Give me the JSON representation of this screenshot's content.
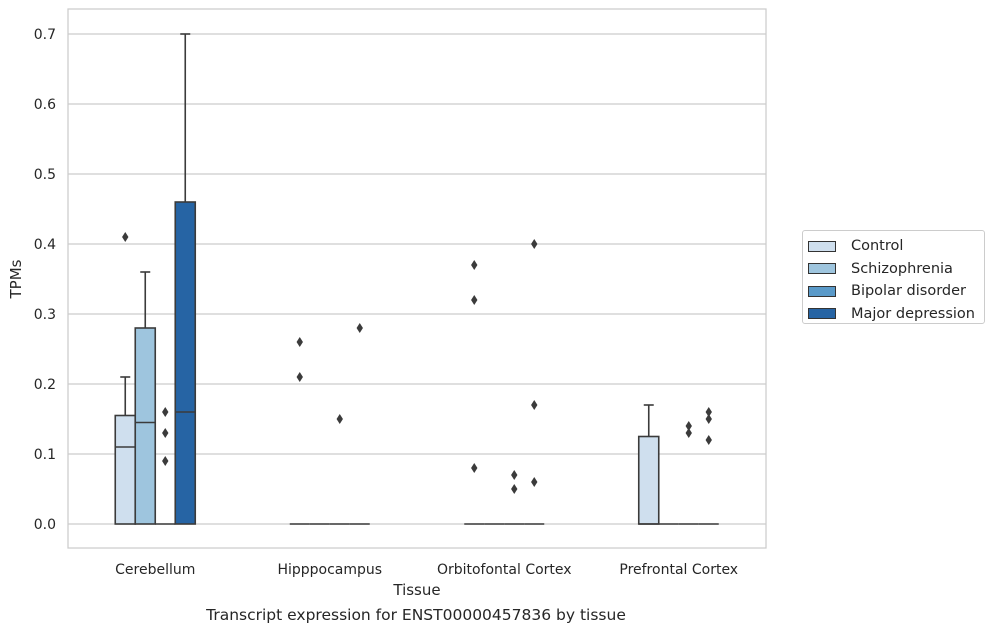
{
  "chart_data": {
    "type": "box",
    "xlabel": "Tissue",
    "ylabel": "TPMs",
    "ylim": [
      -0.035,
      0.735
    ],
    "yticks": [
      "0.0",
      "0.1",
      "0.2",
      "0.3",
      "0.4",
      "0.5",
      "0.6",
      "0.7"
    ],
    "grid": true,
    "legend_position": "right",
    "categories": [
      "Cerebellum",
      "Hipppocampus",
      "Orbitofontal Cortex",
      "Prefrontal Cortex"
    ],
    "series": [
      {
        "name": "Control",
        "color": "#cfdfee"
      },
      {
        "name": "Schizophrenia",
        "color": "#9ec5de"
      },
      {
        "name": "Bipolar disorder",
        "color": "#5a9ac9"
      },
      {
        "name": "Major depression",
        "color": "#2664a4"
      }
    ],
    "boxes": [
      [
        {
          "q1": 0.0,
          "median": 0.11,
          "q3": 0.155,
          "whisker_low": 0.0,
          "whisker_high": 0.21,
          "outliers": [
            0.41
          ]
        },
        {
          "q1": 0.0,
          "median": 0.145,
          "q3": 0.28,
          "whisker_low": 0.0,
          "whisker_high": 0.36,
          "outliers": []
        },
        {
          "q1": 0.0,
          "median": 0.0,
          "q3": 0.0,
          "whisker_low": 0.0,
          "whisker_high": 0.0,
          "outliers": [
            0.16,
            0.13,
            0.09
          ]
        },
        {
          "q1": 0.0,
          "median": 0.16,
          "q3": 0.46,
          "whisker_low": 0.0,
          "whisker_high": 0.7,
          "outliers": []
        }
      ],
      [
        {
          "q1": 0.0,
          "median": 0.0,
          "q3": 0.0,
          "whisker_low": 0.0,
          "whisker_high": 0.0,
          "outliers": [
            0.26,
            0.21
          ]
        },
        {
          "q1": 0.0,
          "median": 0.0,
          "q3": 0.0,
          "whisker_low": 0.0,
          "whisker_high": 0.0,
          "outliers": []
        },
        {
          "q1": 0.0,
          "median": 0.0,
          "q3": 0.0,
          "whisker_low": 0.0,
          "whisker_high": 0.0,
          "outliers": [
            0.15
          ]
        },
        {
          "q1": 0.0,
          "median": 0.0,
          "q3": 0.0,
          "whisker_low": 0.0,
          "whisker_high": 0.0,
          "outliers": [
            0.28
          ]
        }
      ],
      [
        {
          "q1": 0.0,
          "median": 0.0,
          "q3": 0.0,
          "whisker_low": 0.0,
          "whisker_high": 0.0,
          "outliers": [
            0.37,
            0.32,
            0.08
          ]
        },
        {
          "q1": 0.0,
          "median": 0.0,
          "q3": 0.0,
          "whisker_low": 0.0,
          "whisker_high": 0.0,
          "outliers": []
        },
        {
          "q1": 0.0,
          "median": 0.0,
          "q3": 0.0,
          "whisker_low": 0.0,
          "whisker_high": 0.0,
          "outliers": [
            0.07,
            0.05
          ]
        },
        {
          "q1": 0.0,
          "median": 0.0,
          "q3": 0.0,
          "whisker_low": 0.0,
          "whisker_high": 0.0,
          "outliers": [
            0.4,
            0.17,
            0.06
          ]
        }
      ],
      [
        {
          "q1": 0.0,
          "median": 0.0,
          "q3": 0.125,
          "whisker_low": 0.0,
          "whisker_high": 0.17,
          "outliers": []
        },
        {
          "q1": 0.0,
          "median": 0.0,
          "q3": 0.0,
          "whisker_low": 0.0,
          "whisker_high": 0.0,
          "outliers": []
        },
        {
          "q1": 0.0,
          "median": 0.0,
          "q3": 0.0,
          "whisker_low": 0.0,
          "whisker_high": 0.0,
          "outliers": [
            0.14,
            0.13
          ]
        },
        {
          "q1": 0.0,
          "median": 0.0,
          "q3": 0.0,
          "whisker_low": 0.0,
          "whisker_high": 0.0,
          "outliers": [
            0.16,
            0.15,
            0.12
          ]
        }
      ]
    ],
    "caption": "Transcript expression for ENST00000457836 by tissue"
  }
}
